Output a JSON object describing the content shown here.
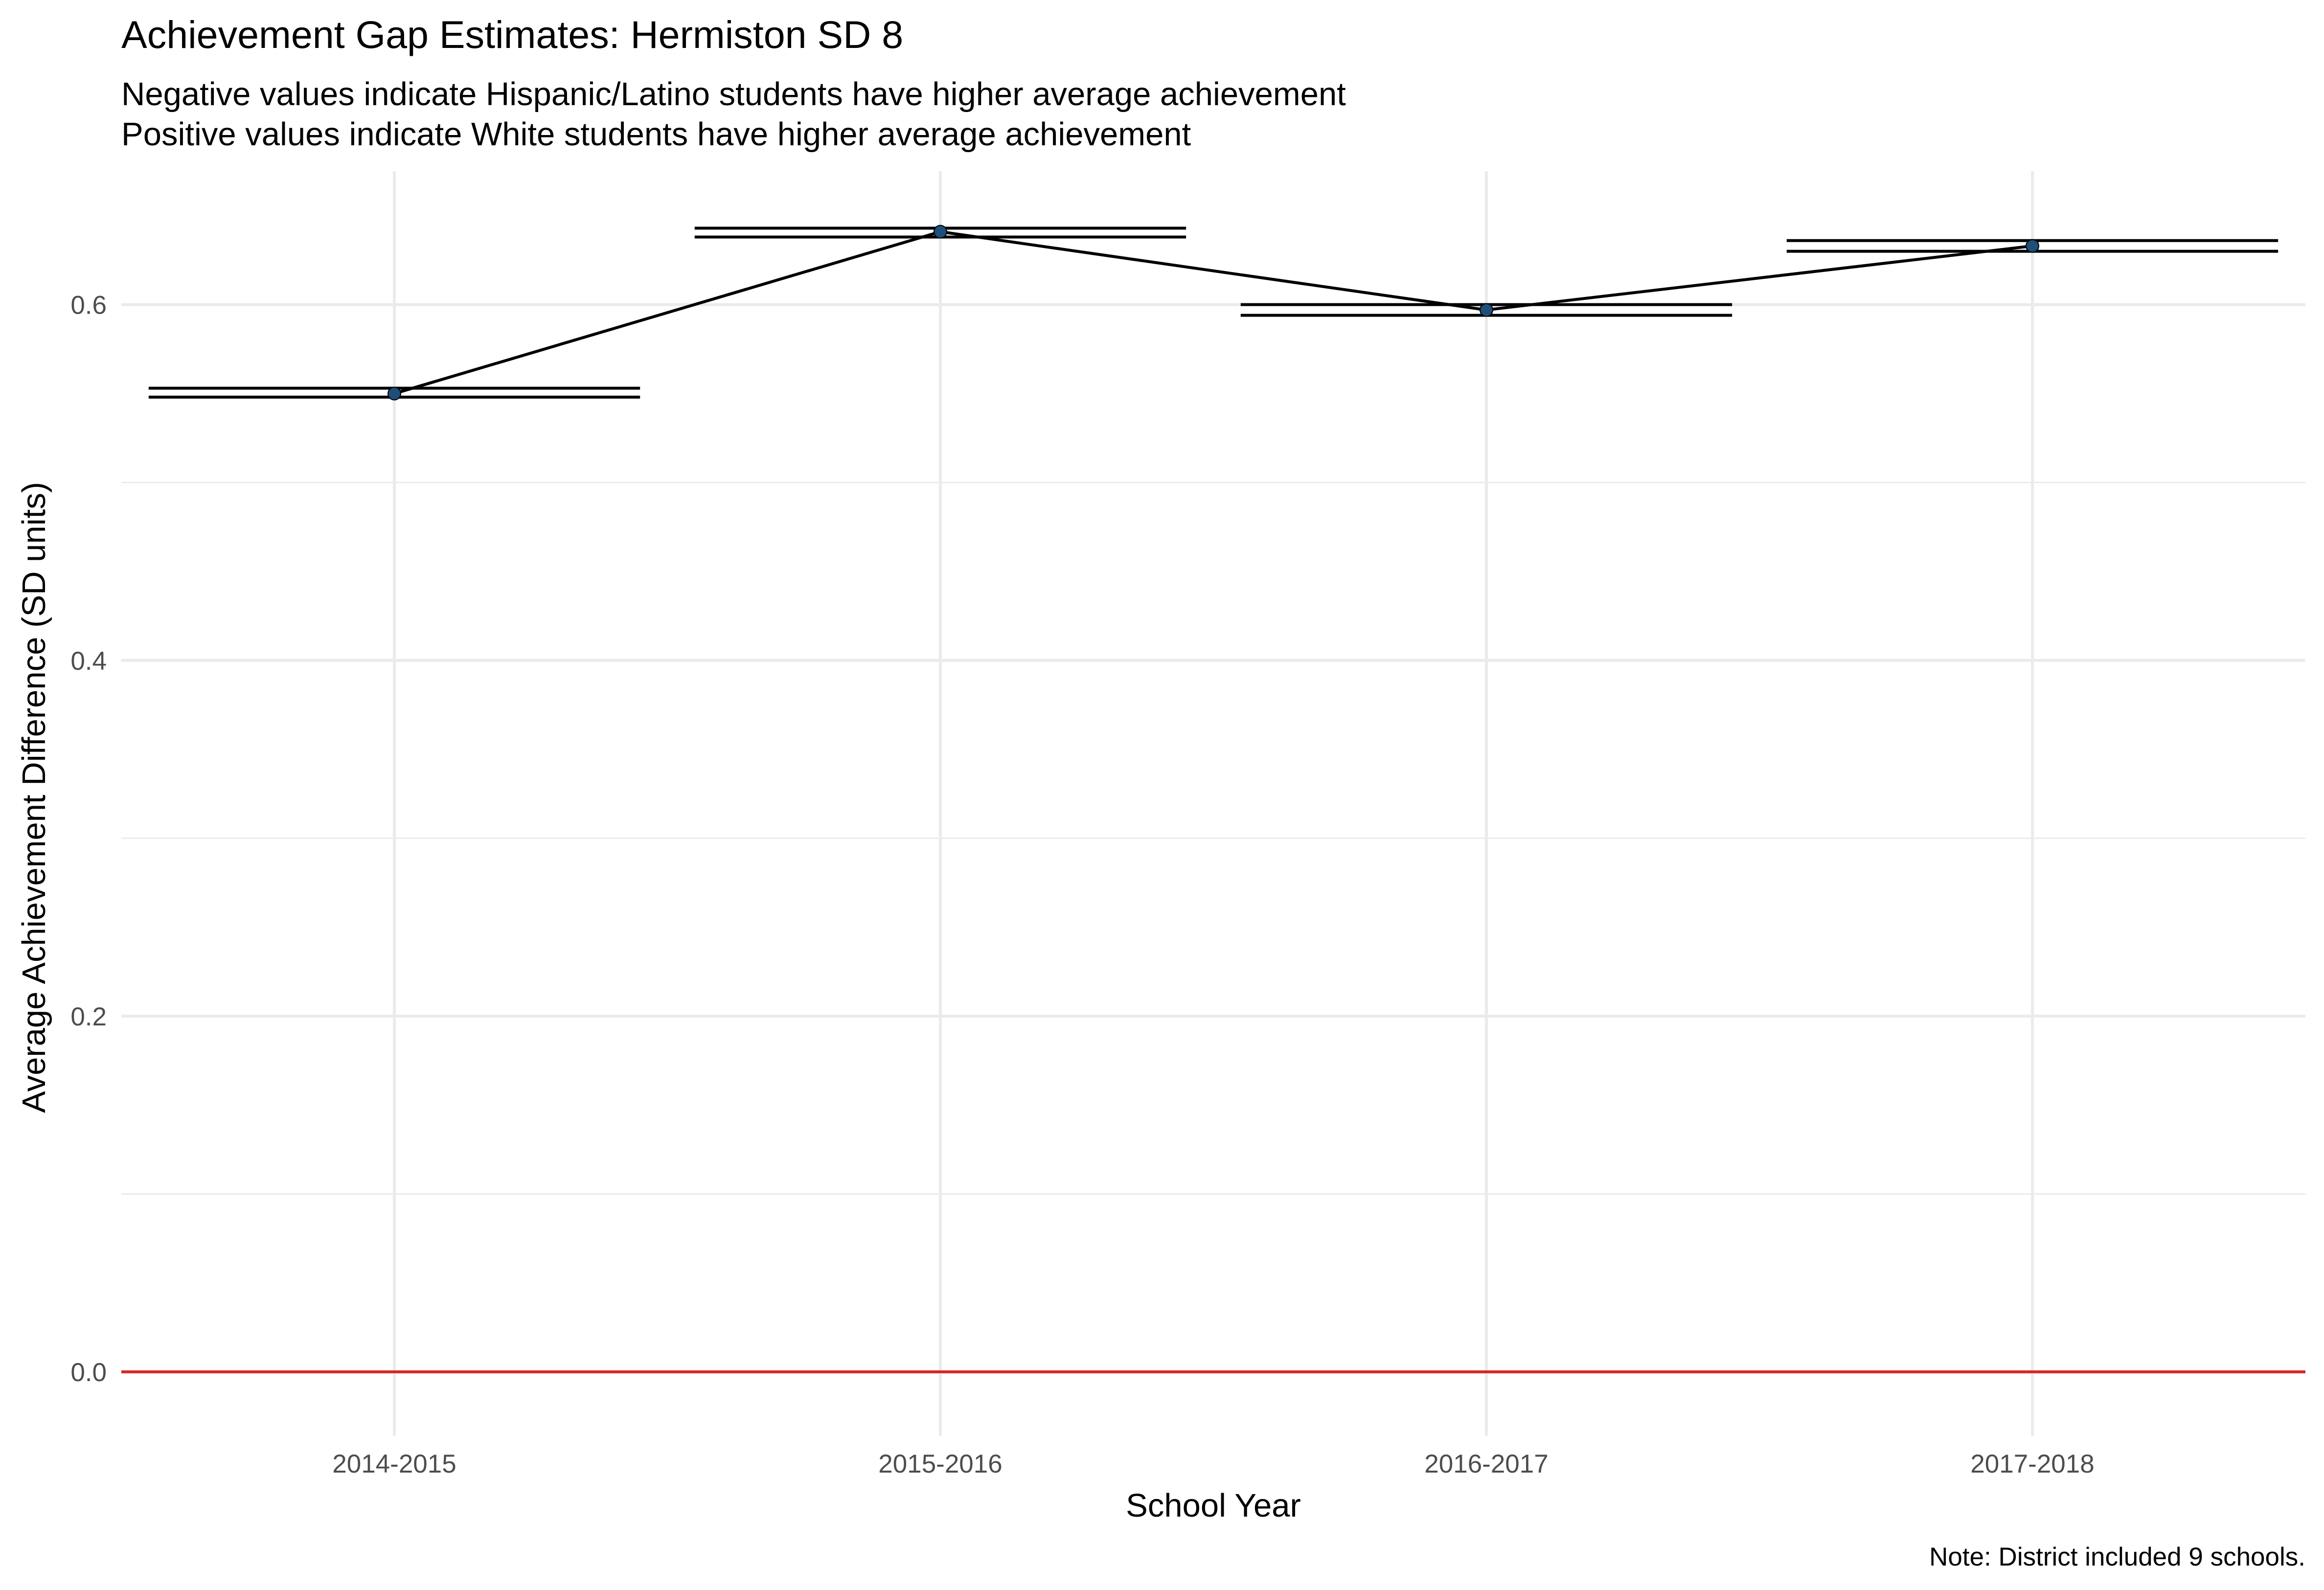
{
  "chart_data": {
    "type": "line",
    "title": "Achievement Gap Estimates: Hermiston SD 8",
    "subtitle_lines": [
      "Negative values indicate Hispanic/Latino students have higher average achievement",
      "Positive values indicate White students have higher average achievement"
    ],
    "xlabel": "School Year",
    "ylabel": "Average Achievement Difference (SD units)",
    "caption": "Note: District included 9 schools.",
    "categories": [
      "2014-2015",
      "2015-2016",
      "2016-2017",
      "2017-2018"
    ],
    "values": [
      0.55,
      0.641,
      0.597,
      0.633
    ],
    "ci_lower": [
      0.548,
      0.638,
      0.594,
      0.63
    ],
    "ci_upper": [
      0.553,
      0.643,
      0.6,
      0.636
    ],
    "ylim": [
      -0.036,
      0.675
    ],
    "y_ticks": [
      0.0,
      0.2,
      0.4,
      0.6
    ],
    "y_tick_labels": [
      "0.0",
      "0.2",
      "0.4",
      "0.6"
    ],
    "y_minor_ticks": [
      0.1,
      0.3,
      0.5
    ],
    "reference_line": 0.0,
    "grid": true,
    "legend": "none",
    "colors": {
      "line": "#000000",
      "point": "#1f4e79",
      "reference": "#d62728",
      "grid": "#ebebeb"
    }
  }
}
